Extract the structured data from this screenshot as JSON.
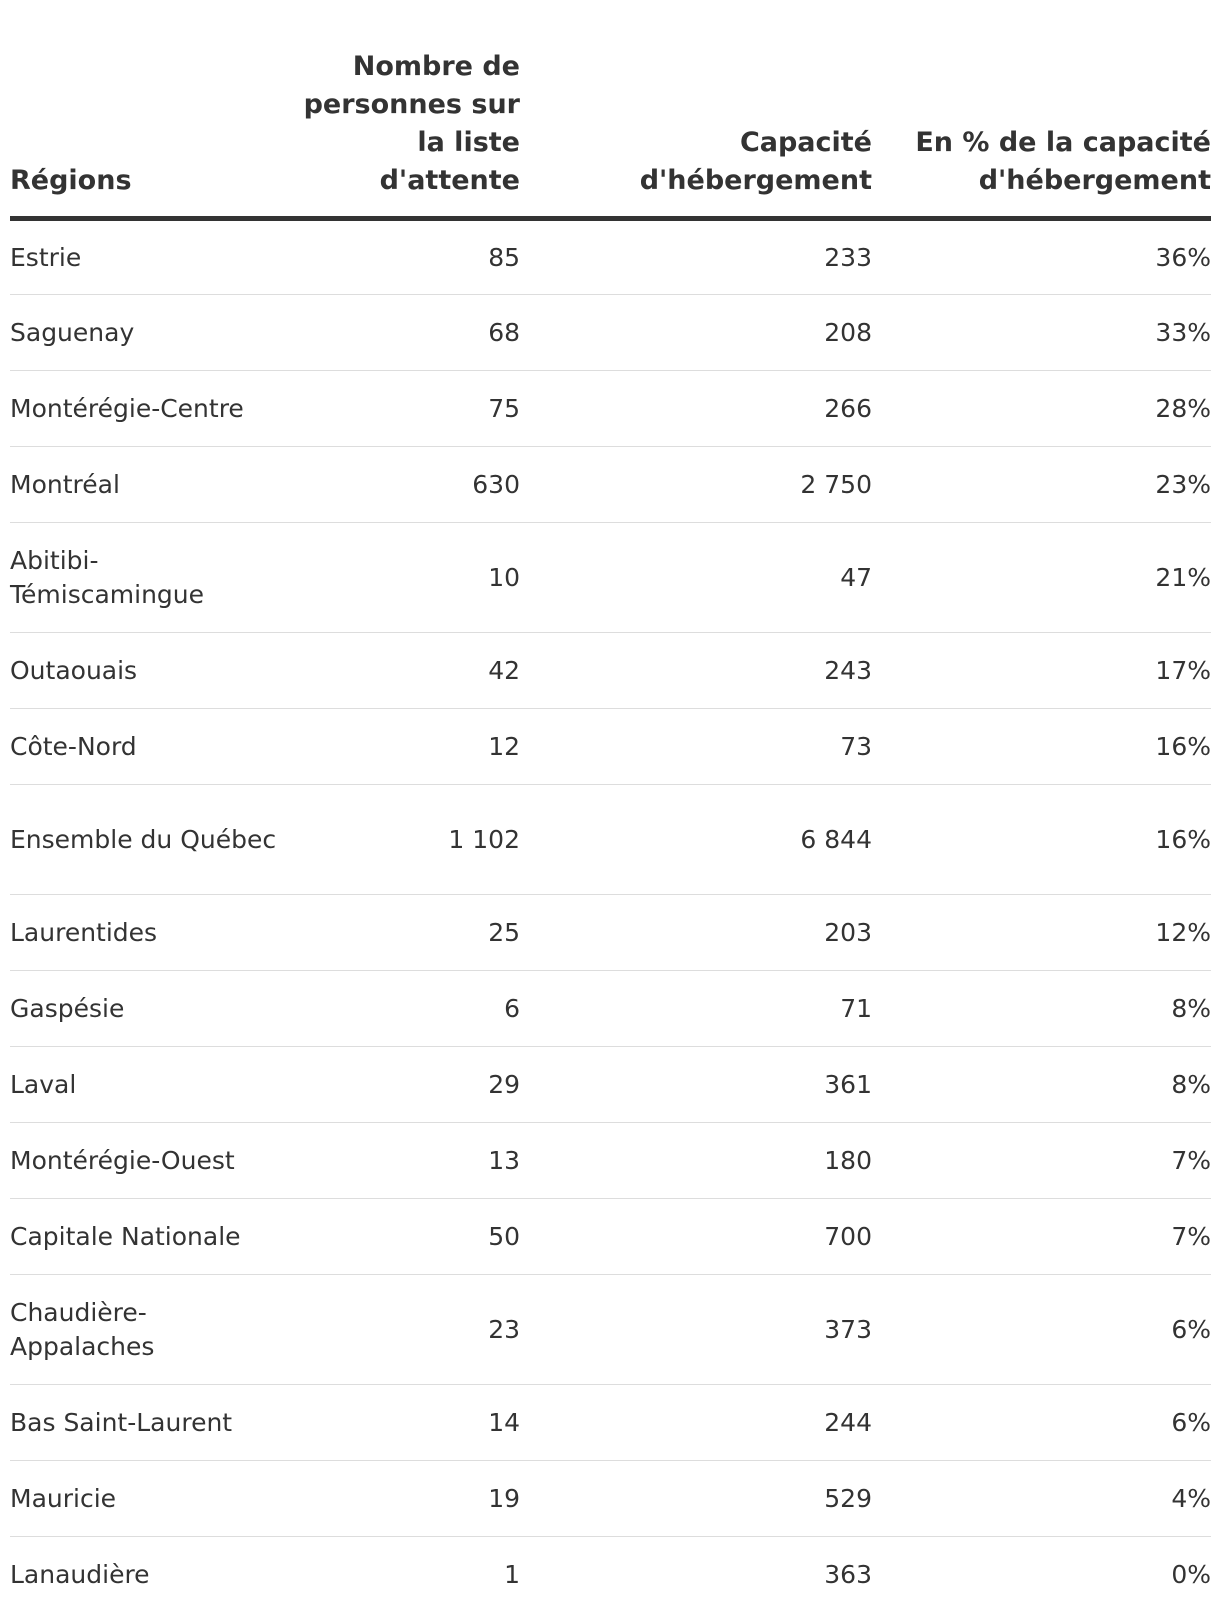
{
  "chart_data": {
    "type": "table",
    "columns": [
      "Régions",
      "Nombre de personnes sur la liste d'attente",
      "Capacité d'hébergement",
      "En % de la capacité d'hébergement"
    ],
    "rows": [
      {
        "region": "Estrie",
        "waiting": "85",
        "capacity": "233",
        "percent": "36%"
      },
      {
        "region": "Saguenay",
        "waiting": "68",
        "capacity": "208",
        "percent": "33%"
      },
      {
        "region": "Montérégie-Centre",
        "waiting": "75",
        "capacity": "266",
        "percent": "28%"
      },
      {
        "region": "Montréal",
        "waiting": "630",
        "capacity": "2 750",
        "percent": "23%"
      },
      {
        "region": "Abitibi-Témiscamingue",
        "waiting": "10",
        "capacity": "47",
        "percent": "21%"
      },
      {
        "region": "Outaouais",
        "waiting": "42",
        "capacity": "243",
        "percent": "17%"
      },
      {
        "region": "Côte-Nord",
        "waiting": "12",
        "capacity": "73",
        "percent": "16%"
      },
      {
        "region": "Ensemble du Québec",
        "waiting": "1 102",
        "capacity": "6 844",
        "percent": "16%"
      },
      {
        "region": "Laurentides",
        "waiting": "25",
        "capacity": "203",
        "percent": "12%"
      },
      {
        "region": "Gaspésie",
        "waiting": "6",
        "capacity": "71",
        "percent": "8%"
      },
      {
        "region": "Laval",
        "waiting": "29",
        "capacity": "361",
        "percent": "8%"
      },
      {
        "region": "Montérégie-Ouest",
        "waiting": "13",
        "capacity": "180",
        "percent": "7%"
      },
      {
        "region": "Capitale Nationale",
        "waiting": "50",
        "capacity": "700",
        "percent": "7%"
      },
      {
        "region": "Chaudière-Appalaches",
        "waiting": "23",
        "capacity": "373",
        "percent": "6%"
      },
      {
        "region": "Bas Saint-Laurent",
        "waiting": "14",
        "capacity": "244",
        "percent": "6%"
      },
      {
        "region": "Mauricie",
        "waiting": "19",
        "capacity": "529",
        "percent": "4%"
      },
      {
        "region": "Lanaudière",
        "waiting": "1",
        "capacity": "363",
        "percent": "0%"
      }
    ]
  }
}
